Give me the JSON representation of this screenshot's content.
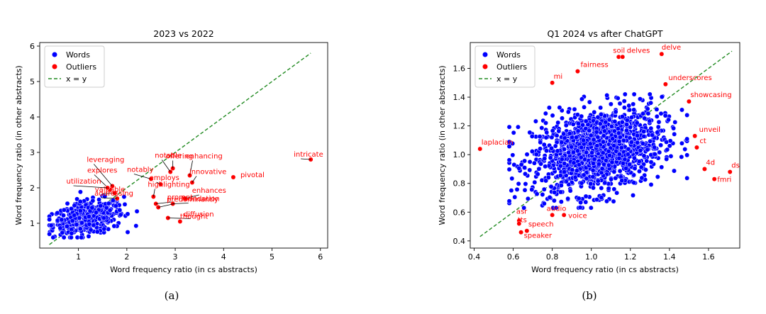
{
  "colors": {
    "words": "#0000ff",
    "outliers": "#ff0000",
    "identity": "#228b22"
  },
  "chart_data": [
    {
      "type": "scatter",
      "title": "2023 vs 2022",
      "xlabel": "Word frequency ratio (in cs abstracts)",
      "ylabel": "Word frequency ratio (in other abstracts)",
      "caption": "(a)",
      "xlim": [
        0.2,
        6.15
      ],
      "ylim": [
        0.3,
        6.1
      ],
      "xticks": [
        1,
        2,
        3,
        4,
        5,
        6
      ],
      "yticks": [
        1,
        2,
        3,
        4,
        5,
        6
      ],
      "legend": {
        "position": "top-left",
        "entries": [
          "Words",
          "Outliers",
          "x = y"
        ]
      },
      "identity_line": [
        [
          0.4,
          0.4
        ],
        [
          5.8,
          5.8
        ]
      ],
      "words_cloud": {
        "count": 420,
        "x_range": [
          0.4,
          2.4
        ],
        "y_range": [
          0.6,
          1.9
        ],
        "center": [
          1.2,
          1.15
        ]
      },
      "outliers": [
        {
          "label": "intricate",
          "x": 5.8,
          "y": 2.8
        },
        {
          "label": "offering",
          "x": 2.95,
          "y": 2.55
        },
        {
          "label": "notable",
          "x": 2.9,
          "y": 2.45
        },
        {
          "label": "enhancing",
          "x": 3.3,
          "y": 2.35
        },
        {
          "label": "innovative",
          "x": 3.35,
          "y": 2.15
        },
        {
          "label": "pivotal",
          "x": 4.2,
          "y": 2.3
        },
        {
          "label": "notably",
          "x": 2.5,
          "y": 2.25
        },
        {
          "label": "employs",
          "x": 2.7,
          "y": 2.1
        },
        {
          "label": "leveraging",
          "x": 1.7,
          "y": 2.05
        },
        {
          "label": "explores",
          "x": 1.65,
          "y": 1.95
        },
        {
          "label": "valuable",
          "x": 1.75,
          "y": 1.85
        },
        {
          "label": "utilization",
          "x": 1.6,
          "y": 2.0
        },
        {
          "label": "highlighting",
          "x": 2.55,
          "y": 1.75
        },
        {
          "label": "enhances",
          "x": 3.2,
          "y": 1.7
        },
        {
          "label": "addressing",
          "x": 1.8,
          "y": 1.7
        },
        {
          "label": "prompt",
          "x": 2.6,
          "y": 1.55
        },
        {
          "label": "foundation",
          "x": 2.95,
          "y": 1.55
        },
        {
          "label": "predominantly",
          "x": 2.65,
          "y": 1.45
        },
        {
          "label": "diffusion",
          "x": 2.85,
          "y": 1.15
        },
        {
          "label": "thought",
          "x": 3.1,
          "y": 1.05
        }
      ]
    },
    {
      "type": "scatter",
      "title": "Q1 2024 vs after ChatGPT",
      "xlabel": "Word frequency ratio (in cs abstracts)",
      "ylabel": "Word frequency ratio (in other abstracts)",
      "caption": "(b)",
      "xlim": [
        0.38,
        1.76
      ],
      "ylim": [
        0.35,
        1.78
      ],
      "xticks": [
        0.4,
        0.6,
        0.8,
        1.0,
        1.2,
        1.4,
        1.6
      ],
      "yticks": [
        0.4,
        0.6,
        0.8,
        1.0,
        1.2,
        1.4,
        1.6
      ],
      "legend": {
        "position": "top-left",
        "entries": [
          "Words",
          "Outliers",
          "x = y"
        ]
      },
      "identity_line": [
        [
          0.43,
          0.43
        ],
        [
          1.72,
          1.72
        ]
      ],
      "words_cloud": {
        "count": 1400,
        "x_range": [
          0.58,
          1.49
        ],
        "y_range": [
          0.63,
          1.42
        ],
        "center": [
          1.03,
          1.03
        ]
      },
      "outliers": [
        {
          "label": "delve",
          "x": 1.36,
          "y": 1.7
        },
        {
          "label": "soil",
          "x": 1.14,
          "y": 1.68
        },
        {
          "label": "delves",
          "x": 1.16,
          "y": 1.68
        },
        {
          "label": "fairness",
          "x": 0.93,
          "y": 1.58
        },
        {
          "label": "mi",
          "x": 0.8,
          "y": 1.5
        },
        {
          "label": "underscores",
          "x": 1.38,
          "y": 1.49
        },
        {
          "label": "showcasing",
          "x": 1.5,
          "y": 1.37
        },
        {
          "label": "unveil",
          "x": 1.53,
          "y": 1.13
        },
        {
          "label": "ct",
          "x": 1.54,
          "y": 1.05
        },
        {
          "label": "laplacian",
          "x": 0.43,
          "y": 1.04
        },
        {
          "label": "4d",
          "x": 1.58,
          "y": 0.9
        },
        {
          "label": "ds",
          "x": 1.71,
          "y": 0.88
        },
        {
          "label": "fmri",
          "x": 1.63,
          "y": 0.83
        },
        {
          "label": "audio",
          "x": 0.8,
          "y": 0.58
        },
        {
          "label": "voice",
          "x": 0.86,
          "y": 0.58
        },
        {
          "label": "asr",
          "x": 0.63,
          "y": 0.54
        },
        {
          "label": "tts",
          "x": 0.63,
          "y": 0.52
        },
        {
          "label": "speech",
          "x": 0.67,
          "y": 0.47
        },
        {
          "label": "speaker",
          "x": 0.64,
          "y": 0.46
        }
      ]
    }
  ]
}
